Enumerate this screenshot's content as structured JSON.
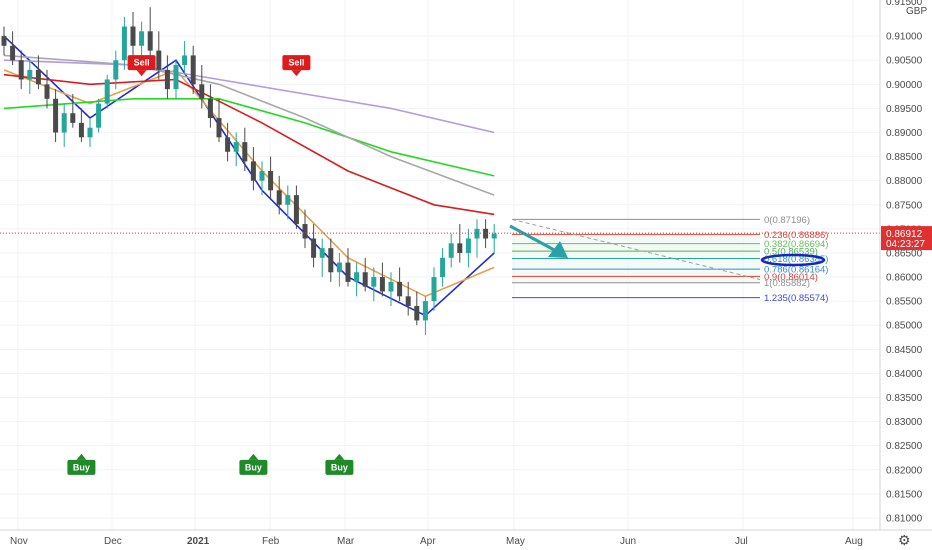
{
  "chart_data": {
    "type": "candlestick",
    "currency": "GBP",
    "y_axis": {
      "range": [
        0.8075,
        0.9175
      ],
      "ticks": [
        0.81,
        0.815,
        0.82,
        0.825,
        0.83,
        0.835,
        0.84,
        0.845,
        0.85,
        0.855,
        0.86,
        0.865,
        0.87,
        0.875,
        0.88,
        0.885,
        0.89,
        0.895,
        0.9,
        0.905,
        0.91
      ],
      "tick_labels": [
        "0.81000",
        "0.81500",
        "0.82000",
        "0.82500",
        "0.83000",
        "0.83500",
        "0.84000",
        "0.84500",
        "0.85000",
        "0.85500",
        "0.86000",
        "0.86500",
        "0.87000",
        "0.87500",
        "0.88000",
        "0.88500",
        "0.89000",
        "0.89500",
        "0.90000",
        "0.90500",
        "0.91000"
      ],
      "top_partial_label": "0.91500"
    },
    "x_axis": {
      "labels": [
        "Nov",
        "Dec",
        "2021",
        "Feb",
        "Mar",
        "Apr",
        "May",
        "Jun",
        "Jul",
        "Aug"
      ]
    },
    "candles": [
      [
        0.91,
        0.912,
        0.906,
        0.908
      ],
      [
        0.908,
        0.911,
        0.904,
        0.905
      ],
      [
        0.905,
        0.907,
        0.899,
        0.901
      ],
      [
        0.901,
        0.905,
        0.898,
        0.903
      ],
      [
        0.903,
        0.906,
        0.899,
        0.9
      ],
      [
        0.9,
        0.903,
        0.895,
        0.897
      ],
      [
        0.897,
        0.899,
        0.888,
        0.89
      ],
      [
        0.89,
        0.896,
        0.887,
        0.894
      ],
      [
        0.894,
        0.898,
        0.891,
        0.892
      ],
      [
        0.892,
        0.895,
        0.888,
        0.889
      ],
      [
        0.889,
        0.893,
        0.887,
        0.891
      ],
      [
        0.891,
        0.897,
        0.89,
        0.896
      ],
      [
        0.896,
        0.902,
        0.895,
        0.901
      ],
      [
        0.901,
        0.907,
        0.899,
        0.905
      ],
      [
        0.905,
        0.914,
        0.903,
        0.912
      ],
      [
        0.912,
        0.915,
        0.906,
        0.908
      ],
      [
        0.908,
        0.913,
        0.904,
        0.911
      ],
      [
        0.911,
        0.916,
        0.905,
        0.907
      ],
      [
        0.907,
        0.911,
        0.901,
        0.903
      ],
      [
        0.903,
        0.906,
        0.897,
        0.899
      ],
      [
        0.899,
        0.905,
        0.897,
        0.904
      ],
      [
        0.904,
        0.909,
        0.902,
        0.906
      ],
      [
        0.906,
        0.908,
        0.898,
        0.9
      ],
      [
        0.9,
        0.904,
        0.895,
        0.897
      ],
      [
        0.897,
        0.9,
        0.891,
        0.893
      ],
      [
        0.893,
        0.897,
        0.888,
        0.889
      ],
      [
        0.889,
        0.892,
        0.884,
        0.886
      ],
      [
        0.886,
        0.89,
        0.883,
        0.888
      ],
      [
        0.888,
        0.891,
        0.882,
        0.884
      ],
      [
        0.884,
        0.887,
        0.878,
        0.88
      ],
      [
        0.88,
        0.884,
        0.877,
        0.882
      ],
      [
        0.882,
        0.885,
        0.876,
        0.878
      ],
      [
        0.878,
        0.881,
        0.873,
        0.875
      ],
      [
        0.875,
        0.879,
        0.872,
        0.877
      ],
      [
        0.877,
        0.879,
        0.87,
        0.871
      ],
      [
        0.871,
        0.874,
        0.866,
        0.868
      ],
      [
        0.868,
        0.871,
        0.862,
        0.864
      ],
      [
        0.864,
        0.868,
        0.86,
        0.866
      ],
      [
        0.866,
        0.868,
        0.859,
        0.861
      ],
      [
        0.861,
        0.865,
        0.858,
        0.863
      ],
      [
        0.863,
        0.866,
        0.858,
        0.859
      ],
      [
        0.859,
        0.863,
        0.856,
        0.861
      ],
      [
        0.861,
        0.864,
        0.857,
        0.858
      ],
      [
        0.858,
        0.862,
        0.855,
        0.86
      ],
      [
        0.86,
        0.863,
        0.856,
        0.857
      ],
      [
        0.857,
        0.861,
        0.854,
        0.859
      ],
      [
        0.859,
        0.862,
        0.855,
        0.856
      ],
      [
        0.856,
        0.859,
        0.852,
        0.854
      ],
      [
        0.854,
        0.857,
        0.85,
        0.851
      ],
      [
        0.851,
        0.856,
        0.848,
        0.855
      ],
      [
        0.855,
        0.862,
        0.853,
        0.86
      ],
      [
        0.86,
        0.866,
        0.858,
        0.864
      ],
      [
        0.864,
        0.869,
        0.862,
        0.867
      ],
      [
        0.867,
        0.871,
        0.863,
        0.865
      ],
      [
        0.865,
        0.87,
        0.862,
        0.868
      ],
      [
        0.868,
        0.872,
        0.864,
        0.87
      ],
      [
        0.87,
        0.872,
        0.866,
        0.868
      ],
      [
        0.868,
        0.871,
        0.865,
        0.869
      ]
    ],
    "moving_averages": [
      {
        "color": "#1e2bd6",
        "points": [
          [
            0,
            0.91
          ],
          [
            10,
            0.893
          ],
          [
            20,
            0.905
          ],
          [
            30,
            0.878
          ],
          [
            40,
            0.86
          ],
          [
            49,
            0.852
          ],
          [
            57,
            0.865
          ]
        ]
      },
      {
        "color": "#e8a04c",
        "points": [
          [
            0,
            0.903
          ],
          [
            10,
            0.896
          ],
          [
            20,
            0.903
          ],
          [
            30,
            0.882
          ],
          [
            40,
            0.864
          ],
          [
            49,
            0.856
          ],
          [
            57,
            0.862
          ]
        ]
      },
      {
        "color": "#d91e1e",
        "points": [
          [
            0,
            0.902
          ],
          [
            10,
            0.9
          ],
          [
            20,
            0.901
          ],
          [
            30,
            0.892
          ],
          [
            40,
            0.882
          ],
          [
            50,
            0.875
          ],
          [
            57,
            0.873
          ]
        ]
      },
      {
        "color": "#23d923",
        "points": [
          [
            0,
            0.895
          ],
          [
            15,
            0.897
          ],
          [
            25,
            0.897
          ],
          [
            35,
            0.892
          ],
          [
            45,
            0.886
          ],
          [
            57,
            0.881
          ]
        ]
      },
      {
        "color": "#a8a8a8",
        "points": [
          [
            0,
            0.906
          ],
          [
            15,
            0.904
          ],
          [
            25,
            0.9
          ],
          [
            35,
            0.893
          ],
          [
            45,
            0.885
          ],
          [
            57,
            0.877
          ]
        ]
      },
      {
        "color": "#b29be0",
        "points": [
          [
            0,
            0.905
          ],
          [
            15,
            0.904
          ],
          [
            25,
            0.901
          ],
          [
            35,
            0.898
          ],
          [
            45,
            0.895
          ],
          [
            57,
            0.89
          ]
        ]
      }
    ],
    "fib_levels": [
      {
        "ratio": "0",
        "price": "0.87196",
        "value": 0.87196,
        "color": "#8f8f8f"
      },
      {
        "ratio": "0.236",
        "price": "0.86886",
        "value": 0.86886,
        "color": "#e0443d"
      },
      {
        "ratio": "0.382",
        "price": "0.86694",
        "value": 0.86694,
        "color": "#60c25a"
      },
      {
        "ratio": "0.5",
        "price": "0.86539",
        "value": 0.86539,
        "color": "#4caf50"
      },
      {
        "ratio": "0.618",
        "price": "0.86385",
        "value": 0.86385,
        "color": "#26a69a"
      },
      {
        "ratio": "0.786",
        "price": "0.86164",
        "value": 0.86164,
        "color": "#2e8fd0"
      },
      {
        "ratio": "0.9",
        "price": "0.86014",
        "value": 0.86014,
        "color": "#d94040"
      },
      {
        "ratio": "1",
        "price": "0.85882",
        "value": 0.85882,
        "color": "#8f8f8f"
      },
      {
        "ratio": "1.235",
        "price": "0.85574",
        "value": 0.85574,
        "color": "#3d4bd6"
      }
    ],
    "last_price": {
      "value": 0.86912,
      "label": "0.86912",
      "timer": "04:23:27",
      "color": "#e03030"
    },
    "signals": [
      {
        "type": "Sell",
        "bar": 16,
        "price": 0.9045
      },
      {
        "type": "Sell",
        "bar": 34,
        "price": 0.9045
      },
      {
        "type": "Buy",
        "bar": 9,
        "price": 0.8205
      },
      {
        "type": "Buy",
        "bar": 29,
        "price": 0.8205
      },
      {
        "type": "Buy",
        "bar": 39,
        "price": 0.8205
      }
    ],
    "annotation_arrow": {
      "color": "#2aa0a8"
    },
    "highlight_ellipse": {
      "color": "#1a23c9"
    },
    "grid": true
  },
  "colors": {
    "up": "#26a69a",
    "down": "#4a4a4a",
    "bg": "#ffffff"
  }
}
